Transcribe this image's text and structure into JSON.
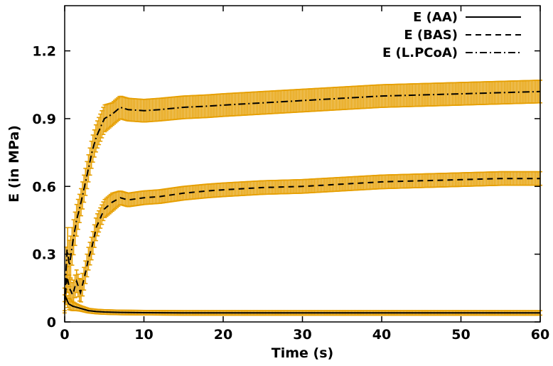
{
  "chart_data": {
    "type": "line",
    "title": "",
    "xlabel": "Time (s)",
    "ylabel": "E (in MPa)",
    "xlim": [
      0,
      60
    ],
    "ylim": [
      0,
      1.4
    ],
    "xticks": [
      0,
      10,
      20,
      30,
      40,
      50,
      60
    ],
    "yticks": [
      0,
      0.3,
      0.6,
      0.9,
      1.2
    ],
    "ytick_labels": [
      "0",
      "0.3",
      "0.6",
      "0.9",
      "1.2"
    ],
    "grid": false,
    "legend_position": "top-right",
    "error_bar_color": "#E69F00",
    "line_color": "#000000",
    "series": [
      {
        "name": "E (AA)",
        "dash": "solid",
        "x": [
          0,
          0.5,
          1,
          1.5,
          2,
          3,
          4,
          5,
          7,
          10,
          15,
          20,
          30,
          40,
          50,
          60
        ],
        "y": [
          0.12,
          0.08,
          0.07,
          0.065,
          0.06,
          0.05,
          0.046,
          0.044,
          0.042,
          0.041,
          0.04,
          0.04,
          0.04,
          0.04,
          0.04,
          0.04
        ],
        "error": [
          0.03,
          0.025,
          0.02,
          0.015,
          0.012,
          0.01,
          0.01,
          0.01,
          0.01,
          0.01,
          0.01,
          0.01,
          0.01,
          0.01,
          0.01,
          0.01
        ]
      },
      {
        "name": "E (BAS)",
        "dash": "dashed",
        "x": [
          0,
          0.3,
          0.6,
          1,
          1.5,
          2,
          2.5,
          3,
          3.5,
          4,
          5,
          6,
          7,
          8,
          10,
          12,
          15,
          18,
          20,
          25,
          30,
          35,
          40,
          45,
          50,
          55,
          60
        ],
        "y": [
          0.08,
          0.2,
          0.15,
          0.12,
          0.18,
          0.13,
          0.2,
          0.28,
          0.34,
          0.42,
          0.5,
          0.53,
          0.55,
          0.54,
          0.55,
          0.555,
          0.57,
          0.58,
          0.585,
          0.595,
          0.6,
          0.61,
          0.62,
          0.625,
          0.63,
          0.635,
          0.635
        ],
        "error": [
          0.04,
          0.06,
          0.05,
          0.05,
          0.05,
          0.05,
          0.05,
          0.05,
          0.05,
          0.05,
          0.04,
          0.04,
          0.03,
          0.03,
          0.03,
          0.03,
          0.03,
          0.03,
          0.03,
          0.03,
          0.03,
          0.03,
          0.03,
          0.03,
          0.03,
          0.03,
          0.03
        ]
      },
      {
        "name": "E (L.PCoA)",
        "dash": "dashdot",
        "x": [
          0,
          0.3,
          0.6,
          1,
          1.5,
          2,
          2.5,
          3,
          3.5,
          4,
          4.5,
          5,
          6,
          7,
          8,
          10,
          12,
          15,
          18,
          20,
          25,
          30,
          35,
          40,
          45,
          50,
          55,
          60
        ],
        "y": [
          0.1,
          0.32,
          0.25,
          0.35,
          0.45,
          0.52,
          0.6,
          0.68,
          0.76,
          0.82,
          0.86,
          0.9,
          0.92,
          0.95,
          0.94,
          0.935,
          0.94,
          0.95,
          0.955,
          0.96,
          0.97,
          0.98,
          0.99,
          1.0,
          1.005,
          1.01,
          1.015,
          1.02
        ],
        "error": [
          0.05,
          0.12,
          0.1,
          0.08,
          0.07,
          0.06,
          0.06,
          0.06,
          0.06,
          0.06,
          0.06,
          0.06,
          0.05,
          0.05,
          0.05,
          0.05,
          0.05,
          0.05,
          0.05,
          0.05,
          0.05,
          0.05,
          0.05,
          0.05,
          0.05,
          0.05,
          0.05,
          0.05
        ]
      }
    ]
  }
}
